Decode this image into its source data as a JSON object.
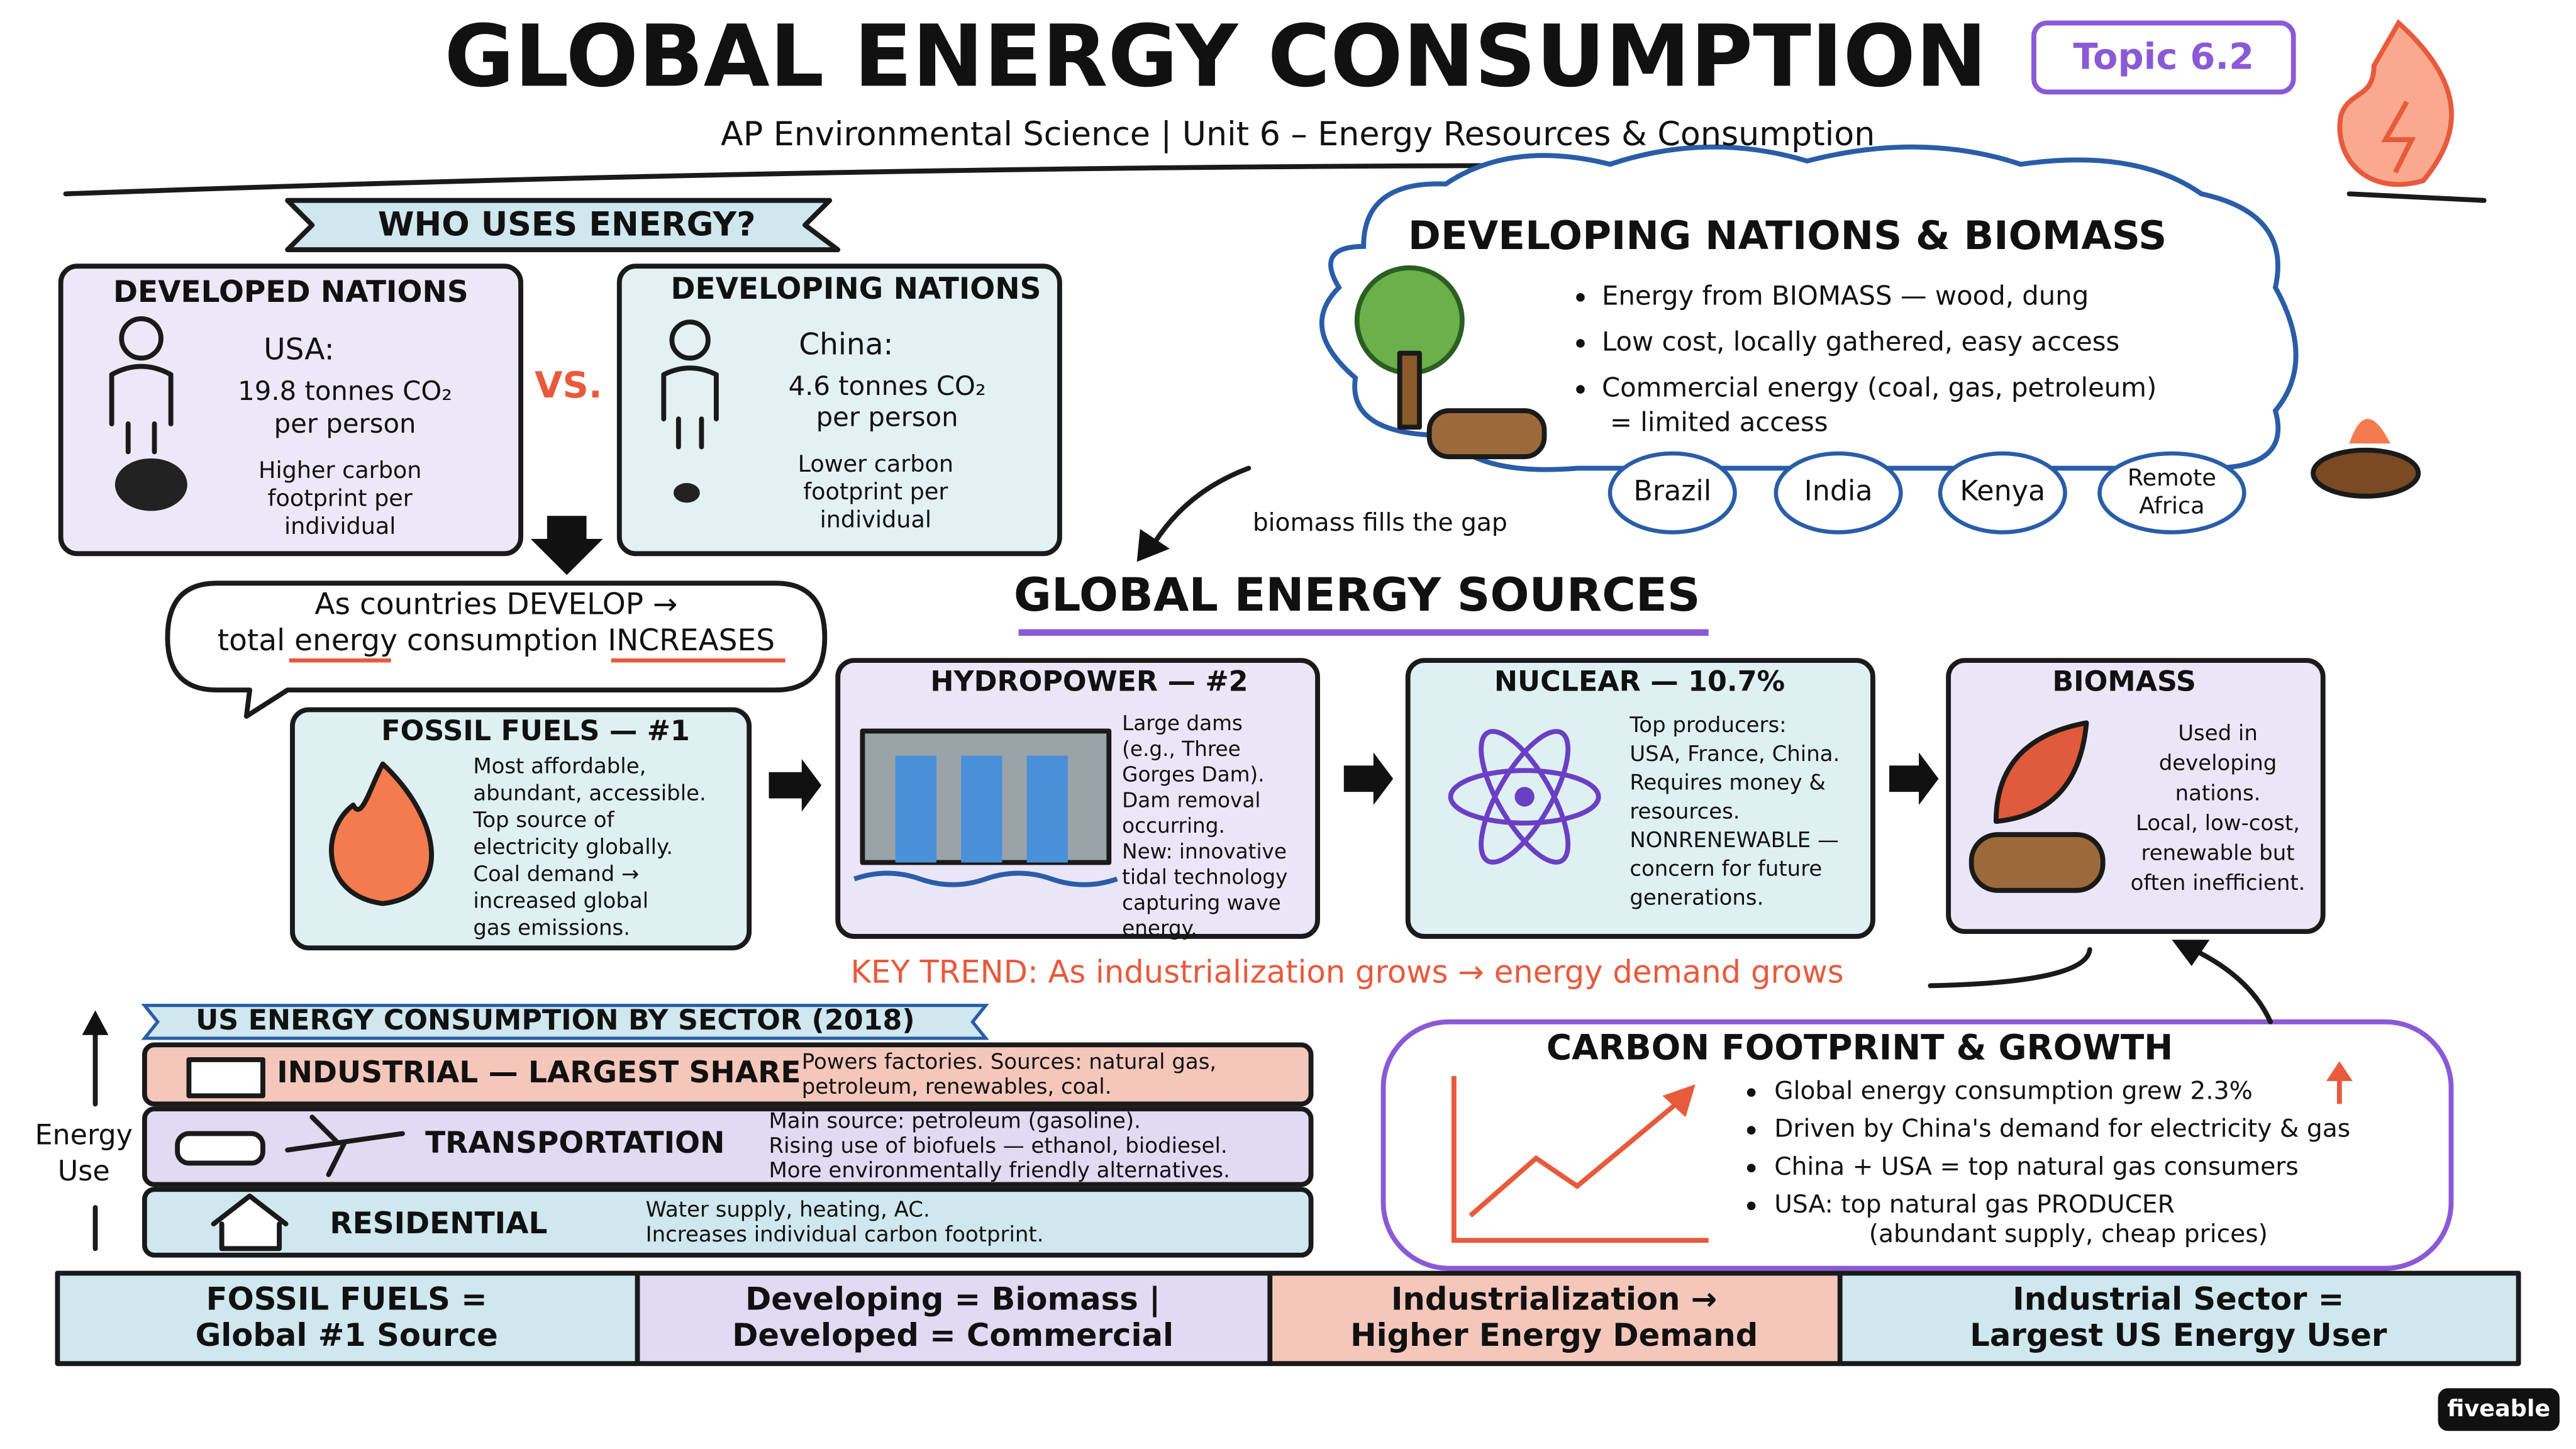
{
  "header": {
    "title": "GLOBAL ENERGY CONSUMPTION",
    "subtitle": "AP Environmental Science  |  Unit 6 – Energy Resources & Consumption",
    "topic": "Topic 6.2"
  },
  "who_uses": {
    "title": "WHO USES ENERGY?",
    "developed": {
      "title": "DEVELOPED NATIONS",
      "country": "USA:",
      "lines": [
        "19.8 tonnes CO₂",
        "per person"
      ],
      "note": [
        "Higher carbon",
        "footprint per",
        "individual"
      ]
    },
    "vs": "VS.",
    "developing": {
      "title": "DEVELOPING NATIONS",
      "country": "China:",
      "lines": [
        "4.6 tonnes CO₂",
        "per person"
      ],
      "note": [
        "Lower carbon",
        "footprint per",
        "individual"
      ]
    },
    "bubble": [
      "As countries DEVELOP →",
      "total energy consumption INCREASES"
    ]
  },
  "biomass_cloud": {
    "title": "DEVELOPING NATIONS & BIOMASS",
    "bullets": [
      "Energy from BIOMASS — wood, dung",
      "Low cost, locally gathered, easy access",
      "Commercial energy (coal, gas, petroleum)"
    ],
    "continuation": "= limited access",
    "regions": [
      [
        "Brazil"
      ],
      [
        "India"
      ],
      [
        "Kenya"
      ],
      [
        "Remote",
        "Africa"
      ]
    ],
    "arrow_label": "biomass fills the gap"
  },
  "sources": {
    "title": "GLOBAL ENERGY SOURCES",
    "cards": [
      {
        "title": "FOSSIL FUELS — #1",
        "lines": [
          "Most affordable,",
          "abundant, accessible.",
          "Top source of",
          "electricity globally.",
          "Coal demand →",
          "increased global",
          "gas emissions."
        ]
      },
      {
        "title": "HYDROPOWER — #2",
        "lines": [
          "Large dams",
          "(e.g., Three",
          "Gorges Dam).",
          "Dam removal",
          "occurring.",
          "New: innovative",
          "tidal technology",
          "capturing wave",
          "energy."
        ]
      },
      {
        "title": "NUCLEAR — 10.7%",
        "lines": [
          "Top producers:",
          "USA, France, China.",
          "Requires money &",
          "resources.",
          "NONRENEWABLE —",
          "concern for future",
          "generations."
        ]
      },
      {
        "title": "BIOMASS",
        "lines": [
          "Used in",
          "developing",
          "nations.",
          "Local, low-cost,",
          "renewable but",
          "often inefficient."
        ]
      }
    ],
    "trend": "KEY TREND: As industrialization grows → energy demand grows"
  },
  "sectors": {
    "title": "US ENERGY CONSUMPTION BY SECTOR (2018)",
    "axis_label": [
      "Energy",
      "Use"
    ],
    "rows": [
      {
        "name": "INDUSTRIAL — LARGEST SHARE",
        "lines": [
          "Powers factories. Sources: natural gas,",
          "petroleum, renewables, coal."
        ]
      },
      {
        "name": "TRANSPORTATION",
        "lines": [
          "Main source: petroleum (gasoline).",
          "Rising use of biofuels — ethanol, biodiesel.",
          "More environmentally friendly alternatives."
        ]
      },
      {
        "name": "RESIDENTIAL",
        "lines": [
          "Water supply, heating, AC.",
          "Increases individual carbon footprint."
        ]
      }
    ]
  },
  "carbon": {
    "title": "CARBON FOOTPRINT & GROWTH",
    "bullets": [
      "Global energy consumption grew 2.3%",
      "Driven by China's demand for electricity & gas",
      "China + USA = top natural gas consumers",
      "USA: top natural gas PRODUCER"
    ],
    "continuation": "(abundant supply, cheap prices)"
  },
  "summary": [
    [
      "FOSSIL FUELS =",
      "Global #1 Source"
    ],
    [
      "Developing = Biomass |",
      "Developed = Commercial"
    ],
    [
      "Industrialization →",
      "Higher Energy Demand"
    ],
    [
      "Industrial Sector =",
      "Largest US Energy User"
    ]
  ],
  "brand": "fiveable"
}
